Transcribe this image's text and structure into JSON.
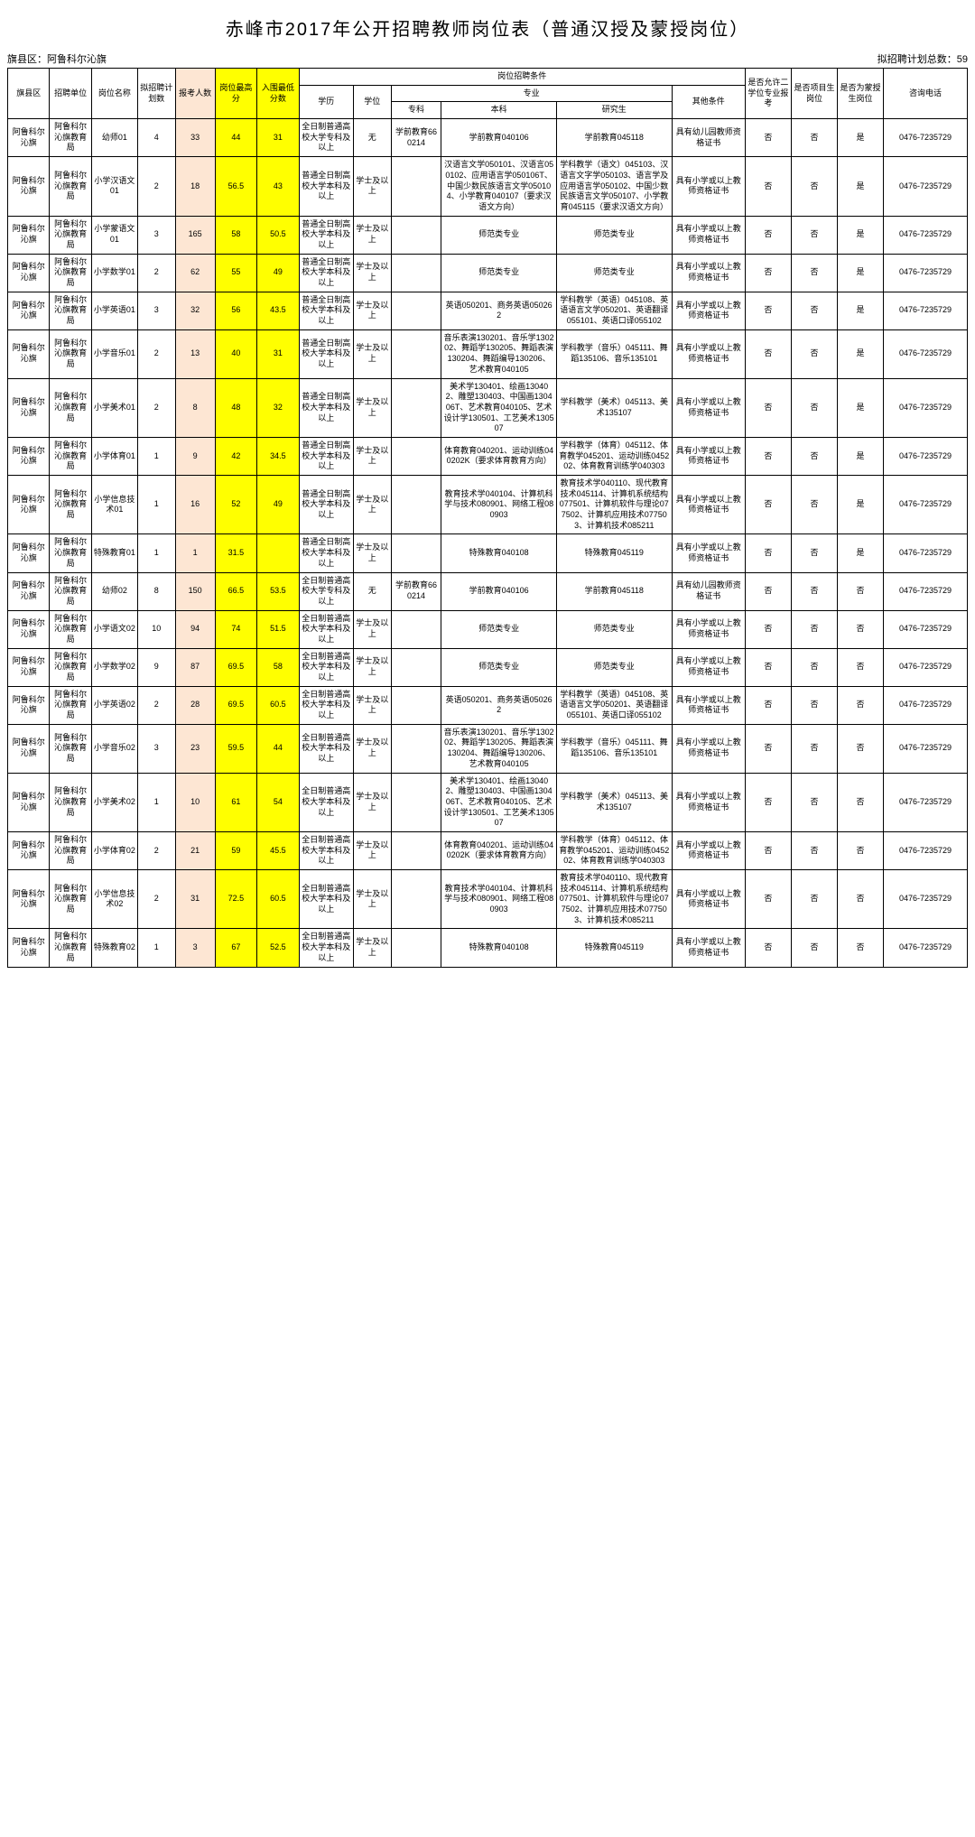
{
  "title": "赤峰市2017年公开招聘教师岗位表（普通汉授及蒙授岗位）",
  "meta": {
    "region_label": "旗县区：",
    "region_value": "阿鲁科尔沁旗",
    "total_label": "拟招聘计划总数：",
    "total_value": "59"
  },
  "headers": {
    "c1": "旗县区",
    "c2": "招聘单位",
    "c3": "岗位名称",
    "c4": "拟招聘计划数",
    "c5": "报考人数",
    "c6": "岗位最高分",
    "c7": "入围最低分数",
    "cond": "岗位招聘条件",
    "c8": "学历",
    "c9": "学位",
    "major": "专业",
    "c10": "专科",
    "c11": "本科",
    "c12": "研究生",
    "c13": "其他条件",
    "c14": "是否允许二学位专业报考",
    "c15": "是否项目生岗位",
    "c16": "是否为蒙授生岗位",
    "c17": "咨询电话"
  },
  "rows": [
    {
      "a": "阿鲁科尔沁旗",
      "b": "阿鲁科尔沁旗教育局",
      "c": "幼师01",
      "d": "4",
      "e": "33",
      "f": "44",
      "g": "31",
      "h": "全日制普通高校大学专科及以上",
      "i": "无",
      "j": "学前教育660214",
      "k": "学前教育040106",
      "l": "学前教育045118",
      "m": "具有幼儿园教师资格证书",
      "n": "否",
      "o": "否",
      "p": "是",
      "q": "0476-7235729"
    },
    {
      "a": "阿鲁科尔沁旗",
      "b": "阿鲁科尔沁旗教育局",
      "c": "小学汉语文01",
      "d": "2",
      "e": "18",
      "f": "56.5",
      "g": "43",
      "h": "普通全日制高校大学本科及以上",
      "i": "学士及以上",
      "j": "",
      "k": "汉语言文学050101、汉语言050102、应用语言学050106T、中国少数民族语言文学050104、小学教育040107（要求汉语文方向）",
      "l": "学科教学（语文）045103、汉语言文字学050103、语言学及应用语言学050102、中国少数民族语言文学050107、小学教育045115（要求汉语文方向）",
      "m": "具有小学或以上教师资格证书",
      "n": "否",
      "o": "否",
      "p": "是",
      "q": "0476-7235729"
    },
    {
      "a": "阿鲁科尔沁旗",
      "b": "阿鲁科尔沁旗教育局",
      "c": "小学蒙语文01",
      "d": "3",
      "e": "165",
      "f": "58",
      "g": "50.5",
      "h": "普通全日制高校大学本科及以上",
      "i": "学士及以上",
      "j": "",
      "k": "师范类专业",
      "l": "师范类专业",
      "m": "具有小学或以上教师资格证书",
      "n": "否",
      "o": "否",
      "p": "是",
      "q": "0476-7235729"
    },
    {
      "a": "阿鲁科尔沁旗",
      "b": "阿鲁科尔沁旗教育局",
      "c": "小学数学01",
      "d": "2",
      "e": "62",
      "f": "55",
      "g": "49",
      "h": "普通全日制高校大学本科及以上",
      "i": "学士及以上",
      "j": "",
      "k": "师范类专业",
      "l": "师范类专业",
      "m": "具有小学或以上教师资格证书",
      "n": "否",
      "o": "否",
      "p": "是",
      "q": "0476-7235729"
    },
    {
      "a": "阿鲁科尔沁旗",
      "b": "阿鲁科尔沁旗教育局",
      "c": "小学英语01",
      "d": "3",
      "e": "32",
      "f": "56",
      "g": "43.5",
      "h": "普通全日制高校大学本科及以上",
      "i": "学士及以上",
      "j": "",
      "k": "英语050201、商务英语050262",
      "l": "学科教学（英语）045108、英语语言文学050201、英语翻译055101、英语口译055102",
      "m": "具有小学或以上教师资格证书",
      "n": "否",
      "o": "否",
      "p": "是",
      "q": "0476-7235729"
    },
    {
      "a": "阿鲁科尔沁旗",
      "b": "阿鲁科尔沁旗教育局",
      "c": "小学音乐01",
      "d": "2",
      "e": "13",
      "f": "40",
      "g": "31",
      "h": "普通全日制高校大学本科及以上",
      "i": "学士及以上",
      "j": "",
      "k": "音乐表演130201、音乐学130202、舞蹈学130205、舞蹈表演130204、舞蹈编导130206、艺术教育040105",
      "l": "学科教学（音乐）045111、舞蹈135106、音乐135101",
      "m": "具有小学或以上教师资格证书",
      "n": "否",
      "o": "否",
      "p": "是",
      "q": "0476-7235729"
    },
    {
      "a": "阿鲁科尔沁旗",
      "b": "阿鲁科尔沁旗教育局",
      "c": "小学美术01",
      "d": "2",
      "e": "8",
      "f": "48",
      "g": "32",
      "h": "普通全日制高校大学本科及以上",
      "i": "学士及以上",
      "j": "",
      "k": "美术学130401、绘画130402、雕塑130403、中国画130406T、艺术教育040105、艺术设计学130501、工艺美术130507",
      "l": "学科教学（美术）045113、美术135107",
      "m": "具有小学或以上教师资格证书",
      "n": "否",
      "o": "否",
      "p": "是",
      "q": "0476-7235729"
    },
    {
      "a": "阿鲁科尔沁旗",
      "b": "阿鲁科尔沁旗教育局",
      "c": "小学体育01",
      "d": "1",
      "e": "9",
      "f": "42",
      "g": "34.5",
      "h": "普通全日制高校大学本科及以上",
      "i": "学士及以上",
      "j": "",
      "k": "体育教育040201、运动训练040202K（要求体育教育方向）",
      "l": "学科教学（体育）045112、体育教学045201、运动训练045202、体育教育训练学040303",
      "m": "具有小学或以上教师资格证书",
      "n": "否",
      "o": "否",
      "p": "是",
      "q": "0476-7235729"
    },
    {
      "a": "阿鲁科尔沁旗",
      "b": "阿鲁科尔沁旗教育局",
      "c": "小学信息技术01",
      "d": "1",
      "e": "16",
      "f": "52",
      "g": "49",
      "h": "普通全日制高校大学本科及以上",
      "i": "学士及以上",
      "j": "",
      "k": "教育技术学040104、计算机科学与技术080901、网络工程080903",
      "l": "教育技术学040110、现代教育技术045114、计算机系统结构077501、计算机软件与理论077502、计算机应用技术077503、计算机技术085211",
      "m": "具有小学或以上教师资格证书",
      "n": "否",
      "o": "否",
      "p": "是",
      "q": "0476-7235729"
    },
    {
      "a": "阿鲁科尔沁旗",
      "b": "阿鲁科尔沁旗教育局",
      "c": "特殊教育01",
      "d": "1",
      "e": "1",
      "f": "31.5",
      "g": "",
      "h": "普通全日制高校大学本科及以上",
      "i": "学士及以上",
      "j": "",
      "k": "特殊教育040108",
      "l": "特殊教育045119",
      "m": "具有小学或以上教师资格证书",
      "n": "否",
      "o": "否",
      "p": "是",
      "q": "0476-7235729"
    },
    {
      "a": "阿鲁科尔沁旗",
      "b": "阿鲁科尔沁旗教育局",
      "c": "幼师02",
      "d": "8",
      "e": "150",
      "f": "66.5",
      "g": "53.5",
      "h": "全日制普通高校大学专科及以上",
      "i": "无",
      "j": "学前教育660214",
      "k": "学前教育040106",
      "l": "学前教育045118",
      "m": "具有幼儿园教师资格证书",
      "n": "否",
      "o": "否",
      "p": "否",
      "q": "0476-7235729"
    },
    {
      "a": "阿鲁科尔沁旗",
      "b": "阿鲁科尔沁旗教育局",
      "c": "小学语文02",
      "d": "10",
      "e": "94",
      "f": "74",
      "g": "51.5",
      "h": "全日制普通高校大学本科及以上",
      "i": "学士及以上",
      "j": "",
      "k": "师范类专业",
      "l": "师范类专业",
      "m": "具有小学或以上教师资格证书",
      "n": "否",
      "o": "否",
      "p": "否",
      "q": "0476-7235729"
    },
    {
      "a": "阿鲁科尔沁旗",
      "b": "阿鲁科尔沁旗教育局",
      "c": "小学数学02",
      "d": "9",
      "e": "87",
      "f": "69.5",
      "g": "58",
      "h": "全日制普通高校大学本科及以上",
      "i": "学士及以上",
      "j": "",
      "k": "师范类专业",
      "l": "师范类专业",
      "m": "具有小学或以上教师资格证书",
      "n": "否",
      "o": "否",
      "p": "否",
      "q": "0476-7235729"
    },
    {
      "a": "阿鲁科尔沁旗",
      "b": "阿鲁科尔沁旗教育局",
      "c": "小学英语02",
      "d": "2",
      "e": "28",
      "f": "69.5",
      "g": "60.5",
      "h": "全日制普通高校大学本科及以上",
      "i": "学士及以上",
      "j": "",
      "k": "英语050201、商务英语050262",
      "l": "学科教学（英语）045108、英语语言文学050201、英语翻译055101、英语口译055102",
      "m": "具有小学或以上教师资格证书",
      "n": "否",
      "o": "否",
      "p": "否",
      "q": "0476-7235729"
    },
    {
      "a": "阿鲁科尔沁旗",
      "b": "阿鲁科尔沁旗教育局",
      "c": "小学音乐02",
      "d": "3",
      "e": "23",
      "f": "59.5",
      "g": "44",
      "h": "全日制普通高校大学本科及以上",
      "i": "学士及以上",
      "j": "",
      "k": "音乐表演130201、音乐学130202、舞蹈学130205、舞蹈表演130204、舞蹈编导130206、艺术教育040105",
      "l": "学科教学（音乐）045111、舞蹈135106、音乐135101",
      "m": "具有小学或以上教师资格证书",
      "n": "否",
      "o": "否",
      "p": "否",
      "q": "0476-7235729"
    },
    {
      "a": "阿鲁科尔沁旗",
      "b": "阿鲁科尔沁旗教育局",
      "c": "小学美术02",
      "d": "1",
      "e": "10",
      "f": "61",
      "g": "54",
      "h": "全日制普通高校大学本科及以上",
      "i": "学士及以上",
      "j": "",
      "k": "美术学130401、绘画130402、雕塑130403、中国画130406T、艺术教育040105、艺术设计学130501、工艺美术130507",
      "l": "学科教学（美术）045113、美术135107",
      "m": "具有小学或以上教师资格证书",
      "n": "否",
      "o": "否",
      "p": "否",
      "q": "0476-7235729"
    },
    {
      "a": "阿鲁科尔沁旗",
      "b": "阿鲁科尔沁旗教育局",
      "c": "小学体育02",
      "d": "2",
      "e": "21",
      "f": "59",
      "g": "45.5",
      "h": "全日制普通高校大学本科及以上",
      "i": "学士及以上",
      "j": "",
      "k": "体育教育040201、运动训练040202K（要求体育教育方向）",
      "l": "学科教学（体育）045112、体育教学045201、运动训练045202、体育教育训练学040303",
      "m": "具有小学或以上教师资格证书",
      "n": "否",
      "o": "否",
      "p": "否",
      "q": "0476-7235729"
    },
    {
      "a": "阿鲁科尔沁旗",
      "b": "阿鲁科尔沁旗教育局",
      "c": "小学信息技术02",
      "d": "2",
      "e": "31",
      "f": "72.5",
      "g": "60.5",
      "h": "全日制普通高校大学本科及以上",
      "i": "学士及以上",
      "j": "",
      "k": "教育技术学040104、计算机科学与技术080901、网络工程080903",
      "l": "教育技术学040110、现代教育技术045114、计算机系统结构077501、计算机软件与理论077502、计算机应用技术077503、计算机技术085211",
      "m": "具有小学或以上教师资格证书",
      "n": "否",
      "o": "否",
      "p": "否",
      "q": "0476-7235729"
    },
    {
      "a": "阿鲁科尔沁旗",
      "b": "阿鲁科尔沁旗教育局",
      "c": "特殊教育02",
      "d": "1",
      "e": "3",
      "f": "67",
      "g": "52.5",
      "h": "全日制普通高校大学本科及以上",
      "i": "学士及以上",
      "j": "",
      "k": "特殊教育040108",
      "l": "特殊教育045119",
      "m": "具有小学或以上教师资格证书",
      "n": "否",
      "o": "否",
      "p": "否",
      "q": "0476-7235729"
    }
  ],
  "colwidths": {
    "a": 40,
    "b": 40,
    "c": 44,
    "d": 36,
    "e": 38,
    "f": 40,
    "g": 40,
    "h": 52,
    "i": 36,
    "j": 48,
    "k": 110,
    "l": 110,
    "m": 70,
    "n": 44,
    "o": 44,
    "p": 44,
    "q": 80
  },
  "styles": {
    "pink": "#fde6d3",
    "yellow": "#ffff00"
  }
}
